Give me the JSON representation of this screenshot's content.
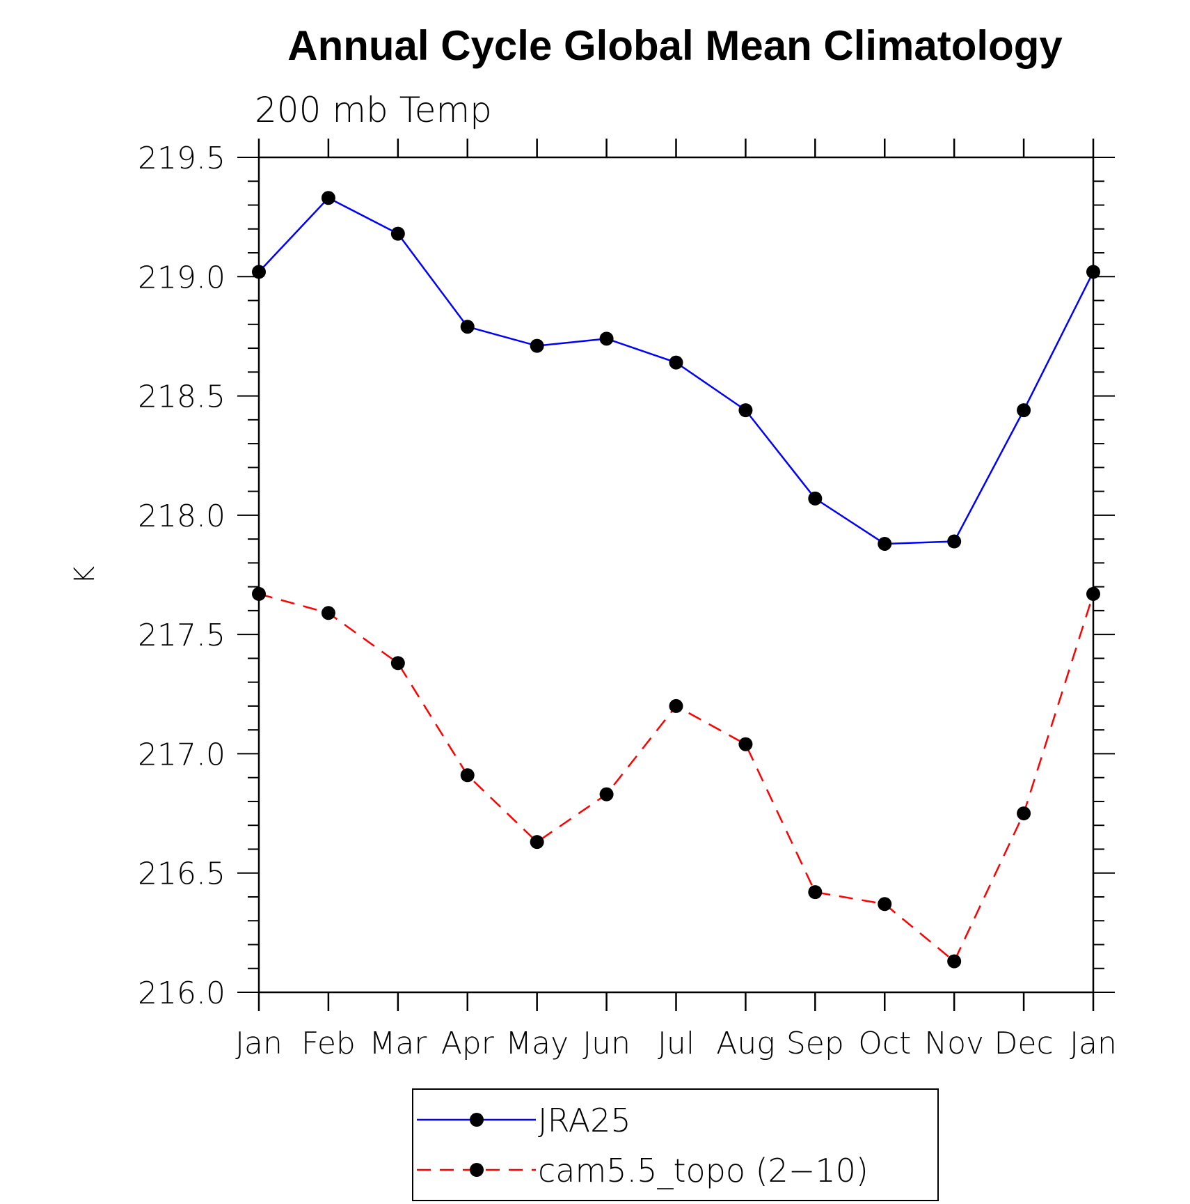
{
  "chart_data": {
    "type": "line",
    "title": "Annual Cycle Global Mean Climatology",
    "subtitle": "200 mb Temp",
    "xlabel": "",
    "ylabel": "K",
    "categories": [
      "Jan",
      "Feb",
      "Mar",
      "Apr",
      "May",
      "Jun",
      "Jul",
      "Aug",
      "Sep",
      "Oct",
      "Nov",
      "Dec",
      "Jan"
    ],
    "ylim": [
      216.0,
      219.5
    ],
    "yticks": [
      216.0,
      216.5,
      217.0,
      217.5,
      218.0,
      218.5,
      219.0,
      219.5
    ],
    "ytick_labels": [
      "216.0",
      "216.5",
      "217.0",
      "217.5",
      "218.0",
      "218.5",
      "219.0",
      "219.5"
    ],
    "y_minor_step": 0.1,
    "grid": false,
    "legend_position": "bottom-center",
    "series": [
      {
        "name": "JRA25",
        "color": "#0000ff",
        "line_style": "solid",
        "marker": "filled-circle",
        "marker_color": "#000000",
        "values": [
          219.02,
          219.33,
          219.18,
          218.79,
          218.71,
          218.74,
          218.64,
          218.44,
          218.07,
          217.88,
          217.89,
          218.44,
          219.02
        ]
      },
      {
        "name": "cam5.5_topo (2−10)",
        "color": "#ff0000",
        "line_style": "dashed",
        "marker": "filled-circle",
        "marker_color": "#000000",
        "values": [
          217.67,
          217.59,
          217.38,
          216.91,
          216.63,
          216.83,
          217.2,
          217.04,
          216.42,
          216.37,
          216.13,
          216.75,
          217.67
        ]
      }
    ]
  }
}
